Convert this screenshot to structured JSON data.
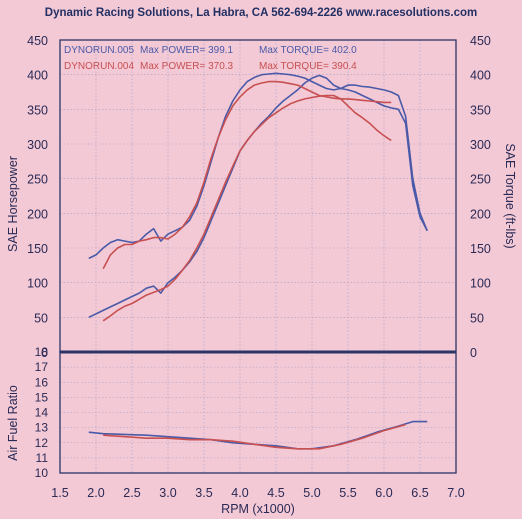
{
  "title": "Dynamic Racing Solutions, La Habra, CA 562-694-2226 www.racesolutions.com",
  "colors": {
    "background": "#f3c9d6",
    "blue": "#4a5aa8",
    "red": "#c85050",
    "axis": "#2a3566"
  },
  "chart_data": [
    {
      "type": "line",
      "xlabel": "RPM (x1000)",
      "ylabel_left": "SAE Horsepower",
      "ylabel_right": "SAE Torque (ft-lbs)",
      "xlim": [
        1.5,
        7.0
      ],
      "ylim": [
        0,
        450
      ],
      "x_ticks": [
        "1.5",
        "2.0",
        "2.5",
        "3.0",
        "3.5",
        "4.0",
        "4.5",
        "5.0",
        "5.5",
        "6.0",
        "6.5",
        "7.0"
      ],
      "y_ticks": [
        "0",
        "50",
        "100",
        "150",
        "200",
        "250",
        "300",
        "350",
        "400",
        "450"
      ],
      "grid": true,
      "legend": [
        {
          "run": "DYNORUN.005",
          "power_label": "Max POWER= 399.1",
          "torque_label": "Max TORQUE= 402.0",
          "color": "#4a5aa8"
        },
        {
          "run": "DYNORUN.004",
          "power_label": "Max POWER= 370.3",
          "torque_label": "Max TORQUE= 390.4",
          "color": "#c85050"
        }
      ],
      "series": [
        {
          "name": "DYNORUN.005",
          "quantity": "torque",
          "color": "#4a5aa8",
          "x": [
            1.9,
            2.0,
            2.1,
            2.2,
            2.3,
            2.4,
            2.5,
            2.6,
            2.7,
            2.8,
            2.9,
            3.0,
            3.1,
            3.2,
            3.3,
            3.4,
            3.5,
            3.6,
            3.7,
            3.8,
            3.9,
            4.0,
            4.1,
            4.2,
            4.3,
            4.4,
            4.5,
            4.6,
            4.7,
            4.8,
            4.9,
            5.0,
            5.1,
            5.2,
            5.3,
            5.4,
            5.5,
            5.6,
            5.7,
            5.8,
            5.9,
            6.0,
            6.1,
            6.2,
            6.3,
            6.4,
            6.5,
            6.6
          ],
          "y": [
            135,
            140,
            150,
            158,
            162,
            160,
            158,
            160,
            170,
            178,
            160,
            170,
            175,
            180,
            190,
            210,
            240,
            275,
            310,
            340,
            362,
            378,
            390,
            396,
            400,
            401,
            402,
            401,
            400,
            398,
            395,
            390,
            385,
            380,
            378,
            380,
            385,
            385,
            383,
            382,
            380,
            378,
            375,
            370,
            340,
            250,
            200,
            175
          ]
        },
        {
          "name": "DYNORUN.005",
          "quantity": "horsepower",
          "color": "#4a5aa8",
          "x": [
            1.9,
            2.0,
            2.1,
            2.2,
            2.3,
            2.4,
            2.5,
            2.6,
            2.7,
            2.8,
            2.9,
            3.0,
            3.1,
            3.2,
            3.3,
            3.4,
            3.5,
            3.6,
            3.7,
            3.8,
            3.9,
            4.0,
            4.1,
            4.2,
            4.3,
            4.4,
            4.5,
            4.6,
            4.7,
            4.8,
            4.9,
            5.0,
            5.1,
            5.2,
            5.3,
            5.4,
            5.5,
            5.6,
            5.7,
            5.8,
            5.9,
            6.0,
            6.1,
            6.2,
            6.3,
            6.4,
            6.5,
            6.6
          ],
          "y": [
            50,
            55,
            60,
            65,
            70,
            75,
            80,
            85,
            92,
            95,
            85,
            100,
            108,
            118,
            130,
            145,
            165,
            190,
            215,
            240,
            265,
            290,
            305,
            318,
            330,
            340,
            352,
            362,
            370,
            378,
            388,
            395,
            399,
            395,
            385,
            380,
            378,
            375,
            370,
            365,
            360,
            355,
            352,
            350,
            330,
            240,
            195,
            175
          ]
        },
        {
          "name": "DYNORUN.004",
          "quantity": "torque",
          "color": "#c85050",
          "x": [
            2.1,
            2.2,
            2.3,
            2.4,
            2.5,
            2.6,
            2.7,
            2.8,
            2.9,
            3.0,
            3.1,
            3.2,
            3.3,
            3.4,
            3.5,
            3.6,
            3.7,
            3.8,
            3.9,
            4.0,
            4.1,
            4.2,
            4.3,
            4.4,
            4.5,
            4.6,
            4.7,
            4.8,
            4.9,
            5.0,
            5.1,
            5.2,
            5.3,
            5.4,
            5.5,
            5.6,
            5.7,
            5.8,
            5.9,
            6.0,
            6.1
          ],
          "y": [
            120,
            140,
            150,
            155,
            155,
            160,
            162,
            165,
            165,
            163,
            170,
            180,
            195,
            215,
            245,
            280,
            310,
            335,
            355,
            368,
            378,
            385,
            388,
            390,
            390,
            389,
            387,
            385,
            380,
            375,
            370,
            368,
            366,
            365,
            365,
            364,
            363,
            362,
            361,
            360,
            360
          ]
        },
        {
          "name": "DYNORUN.004",
          "quantity": "horsepower",
          "color": "#c85050",
          "x": [
            2.1,
            2.2,
            2.3,
            2.4,
            2.5,
            2.6,
            2.7,
            2.8,
            2.9,
            3.0,
            3.1,
            3.2,
            3.3,
            3.4,
            3.5,
            3.6,
            3.7,
            3.8,
            3.9,
            4.0,
            4.1,
            4.2,
            4.3,
            4.4,
            4.5,
            4.6,
            4.7,
            4.8,
            4.9,
            5.0,
            5.1,
            5.2,
            5.3,
            5.4,
            5.5,
            5.6,
            5.7,
            5.8,
            5.9,
            6.0,
            6.1
          ],
          "y": [
            45,
            52,
            60,
            66,
            70,
            76,
            82,
            86,
            90,
            95,
            105,
            118,
            132,
            150,
            170,
            195,
            220,
            245,
            268,
            290,
            305,
            318,
            328,
            338,
            345,
            352,
            358,
            362,
            365,
            367,
            369,
            370,
            370,
            365,
            355,
            345,
            338,
            330,
            320,
            312,
            305
          ]
        }
      ]
    },
    {
      "type": "line",
      "xlabel": "RPM (x1000)",
      "ylabel": "Air Fuel Ratio",
      "xlim": [
        1.5,
        7.0
      ],
      "ylim": [
        10,
        18
      ],
      "y_ticks": [
        "10",
        "11",
        "12",
        "13",
        "14",
        "15",
        "16",
        "17",
        "18"
      ],
      "grid": true,
      "series": [
        {
          "name": "DYNORUN.005",
          "color": "#4a5aa8",
          "x": [
            1.9,
            2.1,
            2.7,
            3.0,
            3.3,
            3.6,
            3.9,
            4.2,
            4.5,
            4.8,
            5.0,
            5.3,
            5.6,
            5.9,
            6.2,
            6.4,
            6.6
          ],
          "y": [
            12.7,
            12.6,
            12.5,
            12.4,
            12.3,
            12.2,
            12.0,
            11.9,
            11.8,
            11.6,
            11.6,
            11.8,
            12.2,
            12.7,
            13.1,
            13.4,
            13.4
          ]
        },
        {
          "name": "DYNORUN.004",
          "color": "#c85050",
          "x": [
            2.1,
            2.4,
            2.7,
            3.0,
            3.3,
            3.6,
            3.9,
            4.2,
            4.5,
            4.8,
            5.1,
            5.4,
            5.7,
            6.0,
            6.3
          ],
          "y": [
            12.5,
            12.4,
            12.3,
            12.3,
            12.2,
            12.2,
            12.1,
            11.9,
            11.7,
            11.6,
            11.6,
            11.9,
            12.3,
            12.8,
            13.2
          ]
        }
      ]
    }
  ]
}
